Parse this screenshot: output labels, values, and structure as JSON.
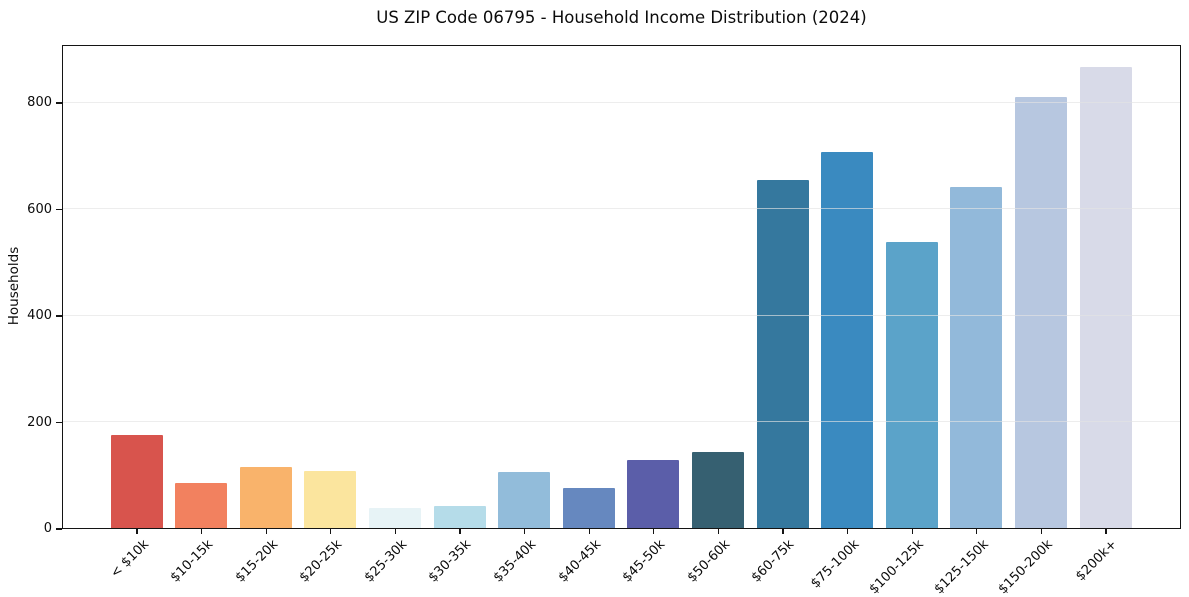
{
  "figure": {
    "title": "US ZIP Code 06795 - Household Income Distribution (2024)"
  },
  "chart_data": {
    "type": "bar",
    "title": "US ZIP Code 06795 - Household Income Distribution (2024)",
    "xlabel": "",
    "ylabel": "Households",
    "categories": [
      "< $10k",
      "$10-15k",
      "$15-20k",
      "$20-25k",
      "$25-30k",
      "$30-35k",
      "$35-40k",
      "$40-45k",
      "$45-50k",
      "$50-60k",
      "$60-75k",
      "$75-100k",
      "$100-125k",
      "$125-150k",
      "$150-200k",
      "$200k+"
    ],
    "values": [
      175,
      85,
      114,
      107,
      38,
      41,
      105,
      76,
      128,
      143,
      654,
      707,
      537,
      640,
      810,
      866
    ],
    "bar_colors": [
      "#d8544d",
      "#f2815f",
      "#f9b36b",
      "#fbe59e",
      "#e7f3f6",
      "#b5dce9",
      "#92bcda",
      "#6688bf",
      "#5b5ea9",
      "#366071",
      "#35789e",
      "#3a8ac0",
      "#5ba3c9",
      "#92b9da",
      "#b7c7e0",
      "#d8dae8"
    ],
    "yticks": [
      0,
      200,
      400,
      600,
      800
    ],
    "ylim": [
      0,
      909
    ],
    "grid": "horizontal-only",
    "grid_color": "rgba(228,228,228,0.65)",
    "legend": "none",
    "background_color": "#ffffff",
    "spine_color": "#141414"
  }
}
